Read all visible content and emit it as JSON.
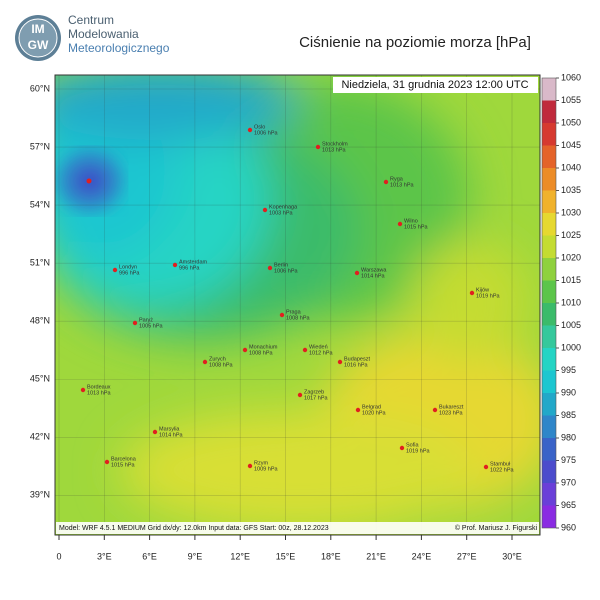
{
  "header": {
    "org_line1": "Centrum",
    "org_line2": "Modelowania",
    "org_line3": "Meteorologicznego",
    "logo_top": "IM",
    "logo_bottom": "GW",
    "title": "Ciśnienie na poziomie morza [hPa]"
  },
  "map": {
    "date": "Niedziela, 31 grudnia 2023 12:00 UTC",
    "lat_ticks": [
      {
        "value": 60,
        "label": "60°N"
      },
      {
        "value": 57,
        "label": "57°N"
      },
      {
        "value": 54,
        "label": "54°N"
      },
      {
        "value": 51,
        "label": "51°N"
      },
      {
        "value": 48,
        "label": "48°N"
      },
      {
        "value": 45,
        "label": "45°N"
      },
      {
        "value": 42,
        "label": "42°N"
      },
      {
        "value": 39,
        "label": "39°N"
      }
    ],
    "lon_ticks": [
      0,
      {
        "value": 3,
        "label": "3°E"
      },
      {
        "value": 6,
        "label": "6°E"
      },
      {
        "value": 9,
        "label": "9°E"
      },
      {
        "value": 12,
        "label": "12°E"
      },
      {
        "value": 15,
        "label": "15°E"
      },
      {
        "value": 18,
        "label": "18°E"
      },
      {
        "value": 21,
        "label": "21°E"
      },
      {
        "value": 24,
        "label": "24°E"
      },
      {
        "value": 27,
        "label": "27°E"
      },
      {
        "value": 30,
        "label": "30°E"
      }
    ],
    "cities": [
      {
        "name": "Oslo",
        "pressure": "1006 hPa"
      },
      {
        "name": "Stockholm",
        "pressure": "1013 hPa"
      },
      {
        "name": "Ryga",
        "pressure": "1013 hPa"
      },
      {
        "name": "Kopenhaga",
        "pressure": "1003 hPa"
      },
      {
        "name": "Wilno",
        "pressure": "1015 hPa"
      },
      {
        "name": "Londyn",
        "pressure": "996 hPa"
      },
      {
        "name": "Amsterdam",
        "pressure": "996 hPa"
      },
      {
        "name": "Berlin",
        "pressure": "1006 hPa"
      },
      {
        "name": "Warszawa",
        "pressure": "1014 hPa"
      },
      {
        "name": "Kijów",
        "pressure": "1019 hPa"
      },
      {
        "name": "Paryż",
        "pressure": "1005 hPa"
      },
      {
        "name": "Praga",
        "pressure": "1008 hPa"
      },
      {
        "name": "Monachium",
        "pressure": "1008 hPa"
      },
      {
        "name": "Wiedeń",
        "pressure": "1012 hPa"
      },
      {
        "name": "Budapeszt",
        "pressure": "1016 hPa"
      },
      {
        "name": "Zurych",
        "pressure": "1008 hPa"
      },
      {
        "name": "Bordeaux",
        "pressure": "1013 hPa"
      },
      {
        "name": "Zagrzeb",
        "pressure": "1017 hPa"
      },
      {
        "name": "Belgrad",
        "pressure": "1020 hPa"
      },
      {
        "name": "Bukareszt",
        "pressure": "1023 hPa"
      },
      {
        "name": "Marsylia",
        "pressure": "1014 hPa"
      },
      {
        "name": "Barcelona",
        "pressure": "1015 hPa"
      },
      {
        "name": "Sofia",
        "pressure": "1019 hPa"
      },
      {
        "name": "Rzym",
        "pressure": "1009 hPa"
      },
      {
        "name": "Stambuł",
        "pressure": "1022 hPa"
      }
    ],
    "footer_model": "Model: WRF 4.5.1 MEDIUM   Grid dx/dy: 12.0km   Input data: GFS   Start: 00z, 28.12.2023",
    "footer_author": "© Prof. Mariusz J. Figurski"
  },
  "colorbar": {
    "ticks": [
      960,
      965,
      970,
      975,
      980,
      985,
      990,
      995,
      1000,
      1005,
      1010,
      1015,
      1020,
      1025,
      1030,
      1035,
      1040,
      1045,
      1050,
      1055,
      1060
    ],
    "colors": [
      "#8a2be2",
      "#6a3fd8",
      "#4c4ccc",
      "#3a63c8",
      "#2f86c9",
      "#22a8c9",
      "#1cc6d0",
      "#25d4c4",
      "#35c89c",
      "#3bbb6a",
      "#5cc54a",
      "#8fd13e",
      "#c4dc32",
      "#e6d830",
      "#f0b22c",
      "#ec8c28",
      "#e4632a",
      "#d63a30",
      "#c02a3c",
      "#d9b9c9"
    ]
  }
}
